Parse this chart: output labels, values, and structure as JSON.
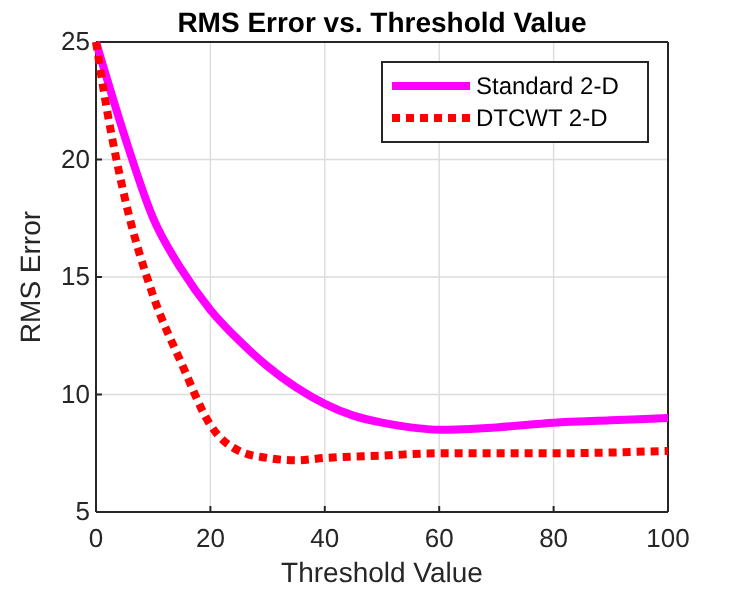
{
  "chart_data": {
    "type": "line",
    "title": "RMS Error vs. Threshold Value",
    "xlabel": "Threshold Value",
    "ylabel": "RMS Error",
    "xlim": [
      0,
      100
    ],
    "xticks": [
      0,
      20,
      40,
      60,
      80,
      100
    ],
    "ylim": [
      5,
      25
    ],
    "yticks": [
      5,
      10,
      15,
      20,
      25
    ],
    "grid": true,
    "legend": "top right",
    "marker": "none",
    "series": [
      {
        "name": "Standard 2-D",
        "color": "#ff00ff",
        "line_style": "solid",
        "x": [
          0,
          5,
          10,
          15,
          20,
          25,
          30,
          35,
          40,
          45,
          50,
          55,
          60,
          70,
          80,
          90,
          100
        ],
        "values": [
          25,
          21,
          17.5,
          15.3,
          13.6,
          12.3,
          11.2,
          10.3,
          9.6,
          9.1,
          8.8,
          8.6,
          8.5,
          8.6,
          8.8,
          8.9,
          9
        ]
      },
      {
        "name": "DTCWT 2-D",
        "color": "#ff0000",
        "line_style": "dotted",
        "x": [
          0,
          2,
          5,
          10,
          15,
          20,
          25,
          30,
          35,
          40,
          50,
          60,
          80,
          100
        ],
        "values": [
          25,
          22,
          18.4,
          14.2,
          11.3,
          8.7,
          7.6,
          7.3,
          7.2,
          7.3,
          7.4,
          7.5,
          7.5,
          7.6
        ]
      }
    ]
  }
}
